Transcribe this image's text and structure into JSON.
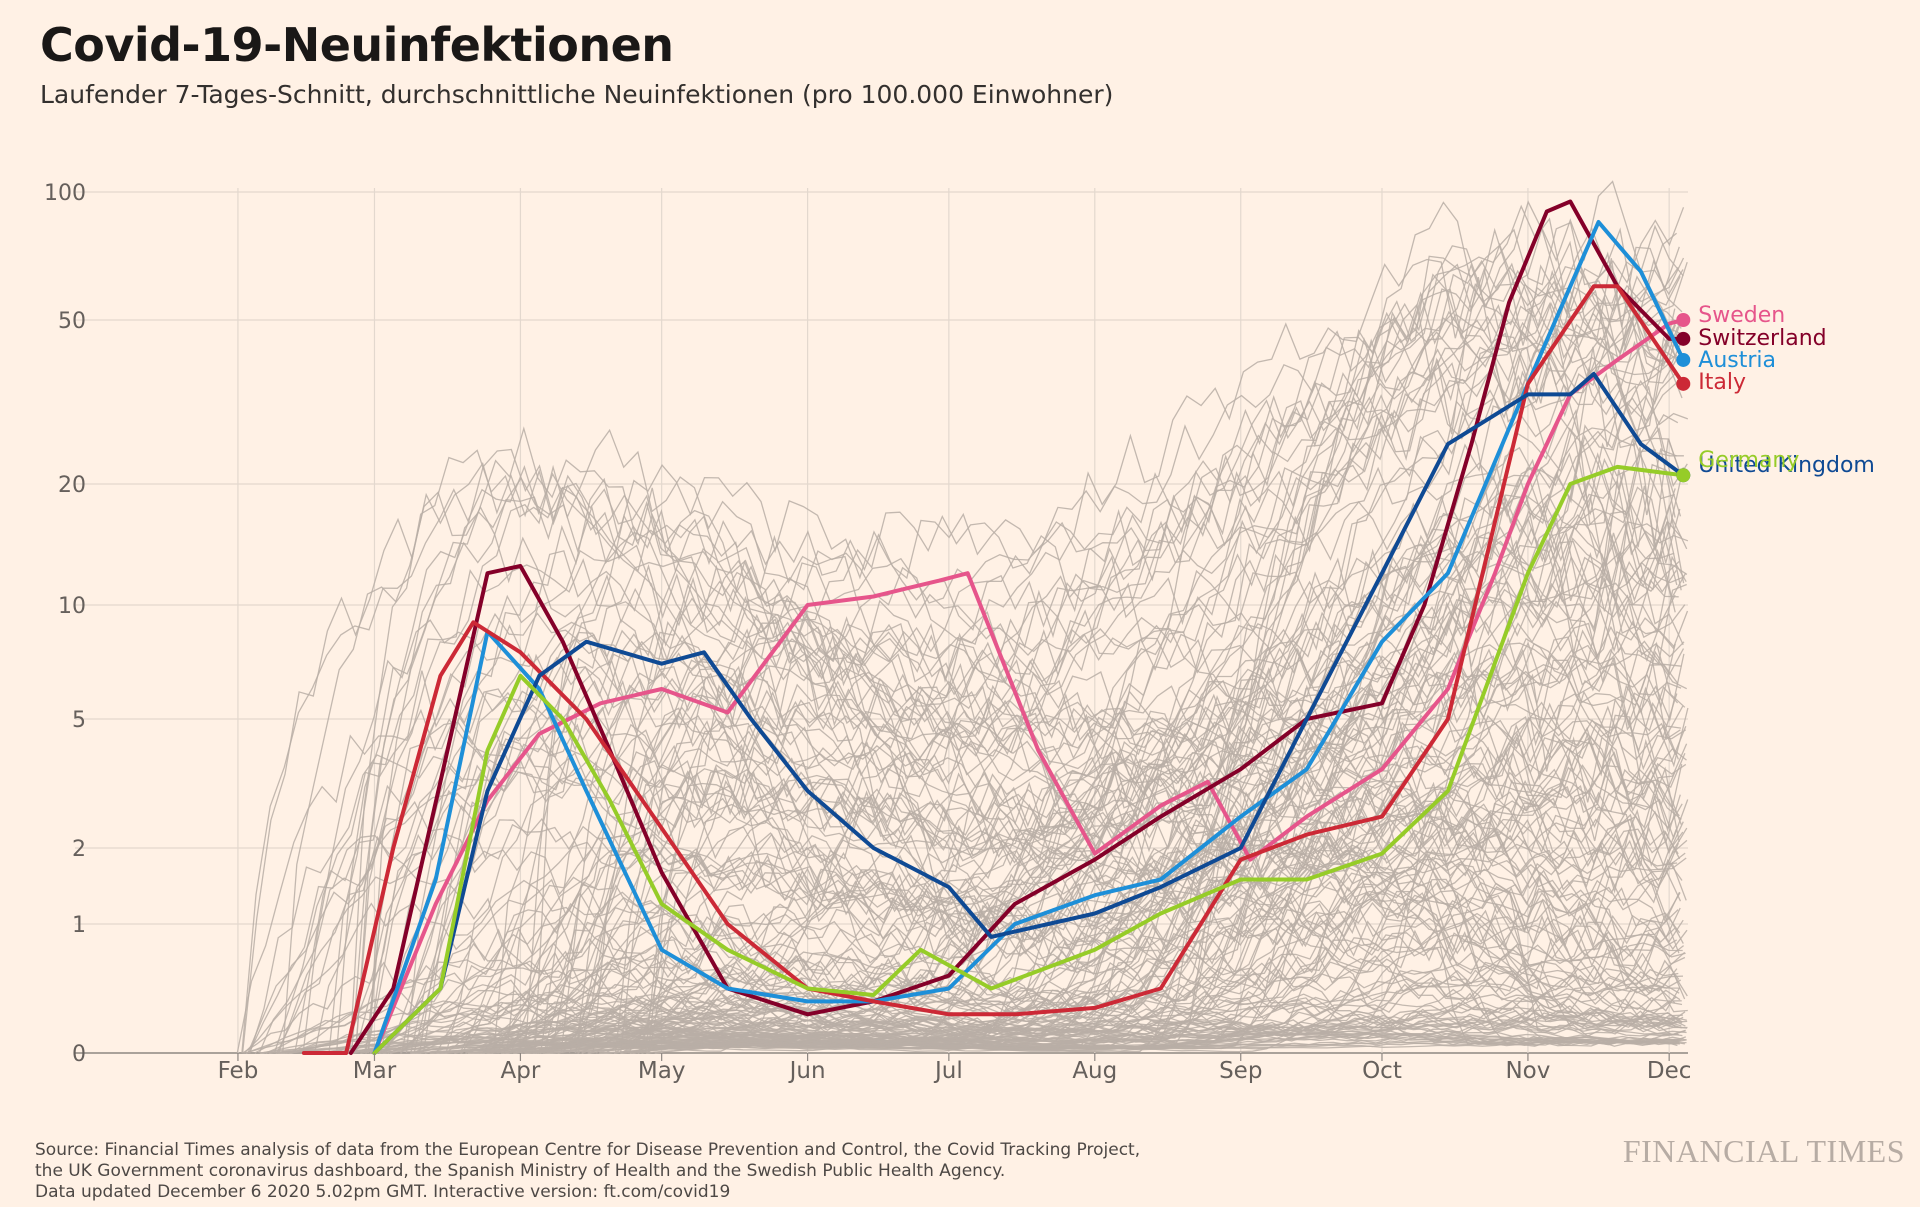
{
  "title": "Covid-19-Neuinfektionen",
  "subtitle": "Laufender 7-Tages-Schnitt, durchschnittliche Neuinfektionen (pro 100.000 Einwohner)",
  "source_lines": [
    "Source: Financial Times analysis of data from the European Centre for Disease Prevention and Control, the Covid Tracking Project,",
    "the UK Government coronavirus dashboard, the Spanish Ministry of Health and the Swedish Public Health Agency.",
    "Data updated December 6 2020 5.02pm GMT. Interactive version: ft.com/covid19"
  ],
  "brand": "FINANCIAL TIMES",
  "chart_data": {
    "type": "line",
    "y_scale": "symlog",
    "ylim": [
      0,
      100
    ],
    "y_ticks": [
      {
        "label": "0",
        "value": 0
      },
      {
        "label": "1",
        "value": 1
      },
      {
        "label": "2",
        "value": 2
      },
      {
        "label": "5",
        "value": 5
      },
      {
        "label": "10",
        "value": 10
      },
      {
        "label": "20",
        "value": 20
      },
      {
        "label": "50",
        "value": 50
      },
      {
        "label": "100",
        "value": 100
      }
    ],
    "x_ticks": [
      {
        "label": "Feb",
        "date": "2020-02-01"
      },
      {
        "label": "Mar",
        "date": "2020-03-01"
      },
      {
        "label": "Apr",
        "date": "2020-04-01"
      },
      {
        "label": "May",
        "date": "2020-05-01"
      },
      {
        "label": "Jun",
        "date": "2020-06-01"
      },
      {
        "label": "Jul",
        "date": "2020-07-01"
      },
      {
        "label": "Aug",
        "date": "2020-08-01"
      },
      {
        "label": "Sep",
        "date": "2020-09-01"
      },
      {
        "label": "Oct",
        "date": "2020-10-01"
      },
      {
        "label": "Nov",
        "date": "2020-11-01"
      },
      {
        "label": "Dec",
        "date": "2020-12-01"
      }
    ],
    "x_range": [
      "2020-01-01",
      "2020-12-05"
    ],
    "grid": true,
    "background_series_color": "#b8aea6",
    "series": [
      {
        "name": "Sweden",
        "color": "#e6558b",
        "x": [
          "2020-03-01",
          "2020-03-14",
          "2020-03-25",
          "2020-04-05",
          "2020-04-18",
          "2020-05-01",
          "2020-05-15",
          "2020-06-01",
          "2020-06-15",
          "2020-06-22",
          "2020-06-29",
          "2020-07-05",
          "2020-07-20",
          "2020-08-01",
          "2020-08-15",
          "2020-08-25",
          "2020-09-03",
          "2020-09-15",
          "2020-10-01",
          "2020-10-15",
          "2020-10-25",
          "2020-11-01",
          "2020-11-10",
          "2020-11-20",
          "2020-12-01",
          "2020-12-04"
        ],
        "values": [
          0,
          1.2,
          2.8,
          4.5,
          5.5,
          6,
          5.2,
          10,
          10.5,
          11,
          11.5,
          12,
          4,
          1.9,
          2.7,
          3.2,
          1.8,
          2.5,
          3.5,
          6,
          12,
          20,
          33,
          40,
          49,
          50
        ]
      },
      {
        "name": "Switzerland",
        "color": "#840029",
        "x": [
          "2020-02-25",
          "2020-03-05",
          "2020-03-15",
          "2020-03-25",
          "2020-04-01",
          "2020-04-10",
          "2020-04-20",
          "2020-05-01",
          "2020-05-15",
          "2020-06-01",
          "2020-06-15",
          "2020-07-01",
          "2020-07-15",
          "2020-08-01",
          "2020-08-15",
          "2020-09-01",
          "2020-09-15",
          "2020-10-01",
          "2020-10-10",
          "2020-10-20",
          "2020-10-28",
          "2020-11-05",
          "2020-11-10",
          "2020-11-20",
          "2020-12-01",
          "2020-12-04"
        ],
        "values": [
          0,
          0.5,
          3.2,
          12,
          12.5,
          8,
          4,
          1.6,
          0.5,
          0.3,
          0.4,
          0.6,
          1.2,
          1.8,
          2.5,
          3.5,
          5,
          5.5,
          10,
          25,
          55,
          90,
          95,
          60,
          45,
          45
        ]
      },
      {
        "name": "Austria",
        "color": "#1e8fd8",
        "x": [
          "2020-03-01",
          "2020-03-14",
          "2020-03-25",
          "2020-04-05",
          "2020-04-15",
          "2020-05-01",
          "2020-05-15",
          "2020-06-01",
          "2020-06-15",
          "2020-07-01",
          "2020-07-15",
          "2020-08-01",
          "2020-08-15",
          "2020-09-01",
          "2020-09-15",
          "2020-10-01",
          "2020-10-15",
          "2020-11-01",
          "2020-11-10",
          "2020-11-16",
          "2020-11-25",
          "2020-12-04"
        ],
        "values": [
          0,
          1.5,
          8.5,
          6,
          3,
          0.8,
          0.5,
          0.4,
          0.4,
          0.5,
          1,
          1.3,
          1.5,
          2.5,
          3.5,
          8,
          12,
          35,
          60,
          85,
          65,
          40
        ]
      },
      {
        "name": "Italy",
        "color": "#cc2936",
        "x": [
          "2020-02-15",
          "2020-02-24",
          "2020-03-05",
          "2020-03-15",
          "2020-03-22",
          "2020-04-01",
          "2020-04-15",
          "2020-05-01",
          "2020-05-15",
          "2020-06-01",
          "2020-06-15",
          "2020-07-01",
          "2020-07-15",
          "2020-08-01",
          "2020-08-15",
          "2020-09-01",
          "2020-09-15",
          "2020-10-01",
          "2020-10-15",
          "2020-11-01",
          "2020-11-15",
          "2020-11-20",
          "2020-12-04"
        ],
        "values": [
          0,
          0,
          2,
          6.5,
          9,
          7.5,
          5,
          2.3,
          1,
          0.5,
          0.4,
          0.3,
          0.3,
          0.35,
          0.5,
          1.8,
          2.2,
          2.5,
          5,
          35,
          60,
          60,
          35
        ]
      },
      {
        "name": "United Kingdom",
        "color": "#0f4a94",
        "x": [
          "2020-03-01",
          "2020-03-15",
          "2020-03-25",
          "2020-04-05",
          "2020-04-15",
          "2020-05-01",
          "2020-05-10",
          "2020-05-20",
          "2020-06-01",
          "2020-06-15",
          "2020-07-01",
          "2020-07-10",
          "2020-08-01",
          "2020-08-15",
          "2020-09-01",
          "2020-09-15",
          "2020-10-01",
          "2020-10-15",
          "2020-11-01",
          "2020-11-10",
          "2020-11-15",
          "2020-11-25",
          "2020-12-04"
        ],
        "values": [
          0,
          0.5,
          3,
          6.5,
          8,
          7,
          7.5,
          5,
          3,
          2,
          1.4,
          0.9,
          1.1,
          1.4,
          2,
          5,
          12,
          25,
          33,
          33,
          37,
          25,
          21
        ]
      },
      {
        "name": "Germany",
        "color": "#96cc28",
        "x": [
          "2020-03-01",
          "2020-03-15",
          "2020-03-25",
          "2020-04-01",
          "2020-04-10",
          "2020-04-20",
          "2020-05-01",
          "2020-05-15",
          "2020-06-01",
          "2020-06-15",
          "2020-06-25",
          "2020-07-10",
          "2020-08-01",
          "2020-08-15",
          "2020-09-01",
          "2020-09-15",
          "2020-10-01",
          "2020-10-15",
          "2020-11-01",
          "2020-11-10",
          "2020-11-20",
          "2020-12-04"
        ],
        "values": [
          0,
          0.5,
          4,
          6.5,
          5,
          2.8,
          1.2,
          0.8,
          0.5,
          0.45,
          0.8,
          0.5,
          0.8,
          1.1,
          1.5,
          1.5,
          1.9,
          3,
          12,
          20,
          22,
          21
        ]
      }
    ]
  }
}
